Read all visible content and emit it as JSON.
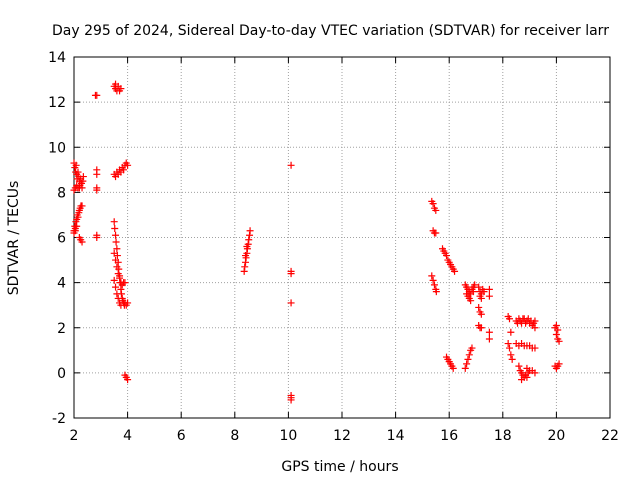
{
  "chart_data": {
    "type": "scatter",
    "title": "Day 295 of 2024, Sidereal Day-to-day VTEC variation (SDTVAR) for receiver larr",
    "xlabel": "GPS time / hours",
    "ylabel": "SDTVAR / TECUs",
    "xlim": [
      2,
      22
    ],
    "ylim": [
      -2,
      14
    ],
    "x_ticks": [
      2,
      4,
      6,
      8,
      10,
      12,
      14,
      16,
      18,
      20,
      22
    ],
    "y_ticks": [
      -2,
      0,
      2,
      4,
      6,
      8,
      10,
      12,
      14
    ],
    "grid": true,
    "marker": "+",
    "marker_color": "#ff0000",
    "series": [
      {
        "name": "SDTVAR",
        "points": [
          [
            2.0,
            9.3
          ],
          [
            2.03,
            9.1
          ],
          [
            2.06,
            8.9
          ],
          [
            2.08,
            9.2
          ],
          [
            2.1,
            8.8
          ],
          [
            2.12,
            8.6
          ],
          [
            2.15,
            8.9
          ],
          [
            2.18,
            8.7
          ],
          [
            2.2,
            8.5
          ],
          [
            2.22,
            8.3
          ],
          [
            2.25,
            8.6
          ],
          [
            2.28,
            8.4
          ],
          [
            2.3,
            8.2
          ],
          [
            2.33,
            8.5
          ],
          [
            2.35,
            8.7
          ],
          [
            2.0,
            8.1
          ],
          [
            2.05,
            8.2
          ],
          [
            2.1,
            8.3
          ],
          [
            2.15,
            8.2
          ],
          [
            2.2,
            8.2
          ],
          [
            2.0,
            6.3
          ],
          [
            2.03,
            6.5
          ],
          [
            2.05,
            6.4
          ],
          [
            2.07,
            6.7
          ],
          [
            2.1,
            6.8
          ],
          [
            2.12,
            7.0
          ],
          [
            2.15,
            6.9
          ],
          [
            2.18,
            7.1
          ],
          [
            2.2,
            7.2
          ],
          [
            2.23,
            7.3
          ],
          [
            2.26,
            7.4
          ],
          [
            2.3,
            7.4
          ],
          [
            2.0,
            6.2
          ],
          [
            2.05,
            6.3
          ],
          [
            2.1,
            6.5
          ],
          [
            2.2,
            6.0
          ],
          [
            2.25,
            5.9
          ],
          [
            2.3,
            5.8
          ],
          [
            2.8,
            12.3
          ],
          [
            2.85,
            12.3
          ],
          [
            2.85,
            9.0
          ],
          [
            2.85,
            8.8
          ],
          [
            2.85,
            8.2
          ],
          [
            2.85,
            8.1
          ],
          [
            2.85,
            6.1
          ],
          [
            2.85,
            6.0
          ],
          [
            3.5,
            12.7
          ],
          [
            3.55,
            12.6
          ],
          [
            3.6,
            12.5
          ],
          [
            3.65,
            12.7
          ],
          [
            3.7,
            12.5
          ],
          [
            3.75,
            12.6
          ],
          [
            3.55,
            12.8
          ],
          [
            3.5,
            8.8
          ],
          [
            3.55,
            8.7
          ],
          [
            3.6,
            8.9
          ],
          [
            3.65,
            8.8
          ],
          [
            3.7,
            9.0
          ],
          [
            3.75,
            8.9
          ],
          [
            3.8,
            9.1
          ],
          [
            3.85,
            9.0
          ],
          [
            3.9,
            9.2
          ],
          [
            3.95,
            9.3
          ],
          [
            4.0,
            9.2
          ],
          [
            3.5,
            6.7
          ],
          [
            3.52,
            6.4
          ],
          [
            3.55,
            6.1
          ],
          [
            3.57,
            5.8
          ],
          [
            3.6,
            5.5
          ],
          [
            3.62,
            5.2
          ],
          [
            3.65,
            4.9
          ],
          [
            3.67,
            4.6
          ],
          [
            3.7,
            4.3
          ],
          [
            3.72,
            4.0
          ],
          [
            3.75,
            3.7
          ],
          [
            3.77,
            3.5
          ],
          [
            3.8,
            3.3
          ],
          [
            3.82,
            3.2
          ],
          [
            3.85,
            3.1
          ],
          [
            3.88,
            3.0
          ],
          [
            3.9,
            3.1
          ],
          [
            3.95,
            3.0
          ],
          [
            4.0,
            3.1
          ],
          [
            3.5,
            5.3
          ],
          [
            3.55,
            5.0
          ],
          [
            3.6,
            4.7
          ],
          [
            3.65,
            4.4
          ],
          [
            3.7,
            4.2
          ],
          [
            3.75,
            4.0
          ],
          [
            3.8,
            3.9
          ],
          [
            3.85,
            4.0
          ],
          [
            3.9,
            4.0
          ],
          [
            3.5,
            4.1
          ],
          [
            3.55,
            3.8
          ],
          [
            3.6,
            3.5
          ],
          [
            3.65,
            3.3
          ],
          [
            3.7,
            3.1
          ],
          [
            3.75,
            3.0
          ],
          [
            3.9,
            -0.1
          ],
          [
            3.95,
            -0.2
          ],
          [
            4.0,
            -0.3
          ],
          [
            8.35,
            4.5
          ],
          [
            8.37,
            4.7
          ],
          [
            8.4,
            4.9
          ],
          [
            8.42,
            5.1
          ],
          [
            8.45,
            5.3
          ],
          [
            8.47,
            5.5
          ],
          [
            8.5,
            5.7
          ],
          [
            8.52,
            5.9
          ],
          [
            8.55,
            6.1
          ],
          [
            8.57,
            6.3
          ],
          [
            8.4,
            5.2
          ],
          [
            8.45,
            5.6
          ],
          [
            10.1,
            9.2
          ],
          [
            10.1,
            4.5
          ],
          [
            10.1,
            4.4
          ],
          [
            10.1,
            3.1
          ],
          [
            10.1,
            -1.0
          ],
          [
            10.1,
            -1.1
          ],
          [
            10.1,
            -1.2
          ],
          [
            15.35,
            7.6
          ],
          [
            15.4,
            7.5
          ],
          [
            15.45,
            7.3
          ],
          [
            15.5,
            7.2
          ],
          [
            15.4,
            6.3
          ],
          [
            15.45,
            6.2
          ],
          [
            15.5,
            6.2
          ],
          [
            15.35,
            4.3
          ],
          [
            15.4,
            4.1
          ],
          [
            15.45,
            3.9
          ],
          [
            15.5,
            3.7
          ],
          [
            15.52,
            3.6
          ],
          [
            15.75,
            5.5
          ],
          [
            15.8,
            5.4
          ],
          [
            15.85,
            5.3
          ],
          [
            15.9,
            5.2
          ],
          [
            15.95,
            5.0
          ],
          [
            16.0,
            4.9
          ],
          [
            16.05,
            4.8
          ],
          [
            16.1,
            4.7
          ],
          [
            16.15,
            4.6
          ],
          [
            16.2,
            4.5
          ],
          [
            15.9,
            0.7
          ],
          [
            15.95,
            0.6
          ],
          [
            16.0,
            0.5
          ],
          [
            16.05,
            0.4
          ],
          [
            16.1,
            0.3
          ],
          [
            16.15,
            0.2
          ],
          [
            16.6,
            3.9
          ],
          [
            16.65,
            3.8
          ],
          [
            16.7,
            3.7
          ],
          [
            16.75,
            3.6
          ],
          [
            16.8,
            3.5
          ],
          [
            16.85,
            3.7
          ],
          [
            16.9,
            3.8
          ],
          [
            16.95,
            3.9
          ],
          [
            16.7,
            3.4
          ],
          [
            16.75,
            3.3
          ],
          [
            16.8,
            3.2
          ],
          [
            16.65,
            3.5
          ],
          [
            16.9,
            3.6
          ],
          [
            16.6,
            0.2
          ],
          [
            16.65,
            0.4
          ],
          [
            16.7,
            0.6
          ],
          [
            16.75,
            0.8
          ],
          [
            16.8,
            1.0
          ],
          [
            16.85,
            1.1
          ],
          [
            17.1,
            3.8
          ],
          [
            17.15,
            3.6
          ],
          [
            17.2,
            3.5
          ],
          [
            17.25,
            3.7
          ],
          [
            17.3,
            3.6
          ],
          [
            17.15,
            3.4
          ],
          [
            17.2,
            3.3
          ],
          [
            17.1,
            2.9
          ],
          [
            17.15,
            2.7
          ],
          [
            17.2,
            2.6
          ],
          [
            17.1,
            2.1
          ],
          [
            17.15,
            2.0
          ],
          [
            17.2,
            2.0
          ],
          [
            17.5,
            3.7
          ],
          [
            17.5,
            3.4
          ],
          [
            17.5,
            1.8
          ],
          [
            17.5,
            1.5
          ],
          [
            18.2,
            2.5
          ],
          [
            18.25,
            2.4
          ],
          [
            18.3,
            1.8
          ],
          [
            18.2,
            1.3
          ],
          [
            18.25,
            1.1
          ],
          [
            18.3,
            0.8
          ],
          [
            18.35,
            0.6
          ],
          [
            18.5,
            2.3
          ],
          [
            18.6,
            2.4
          ],
          [
            18.7,
            2.2
          ],
          [
            18.8,
            2.4
          ],
          [
            18.9,
            2.3
          ],
          [
            19.0,
            2.2
          ],
          [
            19.1,
            2.1
          ],
          [
            19.2,
            2.0
          ],
          [
            18.55,
            2.2
          ],
          [
            18.65,
            2.3
          ],
          [
            18.75,
            2.4
          ],
          [
            18.85,
            2.2
          ],
          [
            18.95,
            2.4
          ],
          [
            19.05,
            2.3
          ],
          [
            19.15,
            2.2
          ],
          [
            19.2,
            2.3
          ],
          [
            18.5,
            1.3
          ],
          [
            18.6,
            1.2
          ],
          [
            18.7,
            1.3
          ],
          [
            18.8,
            1.2
          ],
          [
            18.9,
            1.2
          ],
          [
            19.0,
            1.2
          ],
          [
            19.1,
            1.1
          ],
          [
            19.2,
            1.1
          ],
          [
            18.6,
            0.3
          ],
          [
            18.65,
            0.1
          ],
          [
            18.7,
            0.0
          ],
          [
            18.75,
            -0.1
          ],
          [
            18.8,
            -0.2
          ],
          [
            18.85,
            -0.1
          ],
          [
            18.9,
            -0.2
          ],
          [
            18.95,
            0.0
          ],
          [
            19.0,
            0.1
          ],
          [
            19.1,
            0.1
          ],
          [
            19.2,
            0.0
          ],
          [
            18.7,
            -0.3
          ],
          [
            18.9,
            0.2
          ],
          [
            19.95,
            2.0
          ],
          [
            20.0,
            1.7
          ],
          [
            20.05,
            1.5
          ],
          [
            20.1,
            1.4
          ],
          [
            20.0,
            2.1
          ],
          [
            20.05,
            1.9
          ],
          [
            19.95,
            0.3
          ],
          [
            20.0,
            0.2
          ],
          [
            20.05,
            0.3
          ],
          [
            20.1,
            0.4
          ]
        ]
      }
    ]
  }
}
